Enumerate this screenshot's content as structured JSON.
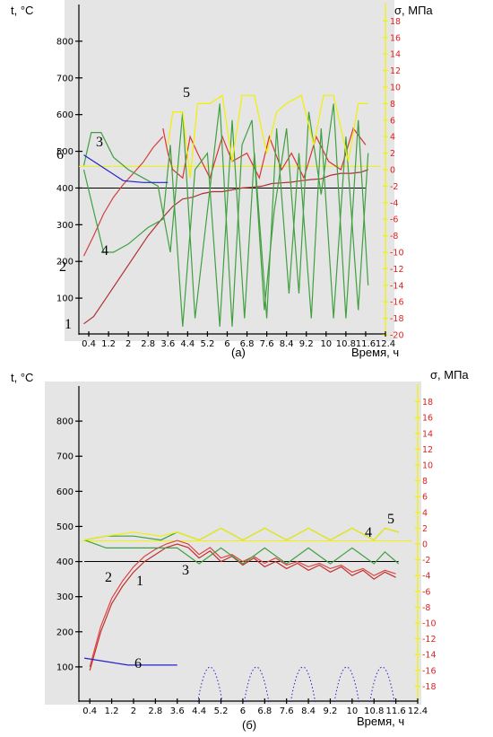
{
  "chart_data": [
    {
      "type": "line",
      "caption": "(а)",
      "left_unit": "t, °C",
      "right_unit": "σ, МПа",
      "xlabel": "Время, ч",
      "x_ticks": [
        "0.4",
        "1.2",
        "2",
        "2.8",
        "3.6",
        "4.4",
        "5.2",
        "6",
        "6.8",
        "7.6",
        "8.4",
        "9.2",
        "10",
        "10.8",
        "11.6",
        "12.4"
      ],
      "y_ticks": [
        "100",
        "200",
        "300",
        "400",
        "500",
        "600",
        "700",
        "800"
      ],
      "y2_ticks": [
        "-20",
        "-18",
        "-16",
        "-14",
        "-12",
        "-10",
        "-8",
        "-6",
        "-4",
        "-2",
        "0",
        "2",
        "4",
        "6",
        "8",
        "10",
        "12",
        "14",
        "16",
        "18"
      ],
      "xlim": [
        0,
        12.4
      ],
      "ylim": [
        0,
        900
      ],
      "y2lim": [
        -20,
        20
      ],
      "reference_lines": [
        {
          "axis": "left",
          "value": 400,
          "color": "#000000",
          "x": [
            0.15,
            11.6
          ]
        },
        {
          "axis": "right",
          "value": 0.4,
          "color": "#f2f200",
          "x": [
            0,
            12.2
          ]
        }
      ],
      "series": [
        {
          "name": "1",
          "color": "#b03030",
          "axis": "left",
          "x": [
            0.2,
            0.6,
            1.0,
            1.6,
            2.2,
            2.8,
            3.4,
            3.8,
            4.2,
            4.6,
            5.0,
            5.4,
            5.8,
            6.2,
            6.6,
            7.0,
            7.4,
            7.8,
            8.2,
            8.6,
            9.0,
            9.4,
            9.8,
            10.2,
            10.6,
            11.0,
            11.4,
            11.7
          ],
          "y": [
            30,
            50,
            90,
            150,
            210,
            270,
            320,
            350,
            370,
            375,
            385,
            390,
            390,
            395,
            400,
            402,
            405,
            412,
            414,
            416,
            420,
            423,
            425,
            435,
            440,
            440,
            443,
            450
          ]
        },
        {
          "name": "2",
          "color": "#d04040",
          "axis": "left",
          "x": [
            0.2,
            0.6,
            1.0,
            1.4,
            1.8,
            2.2,
            2.6,
            3.0,
            3.4
          ],
          "y": [
            215,
            270,
            330,
            375,
            410,
            440,
            470,
            510,
            540
          ]
        },
        {
          "name": "2",
          "color": "#dd3333",
          "axis": "right",
          "x": [
            3.4,
            3.6,
            3.8,
            4.2,
            4.5,
            4.8,
            5.3,
            5.8,
            6.2,
            6.8,
            7.3,
            7.7,
            8.2,
            8.6,
            9.1,
            9.6,
            10.1,
            10.6,
            11.1,
            11.6
          ],
          "y": [
            5,
            2,
            0,
            -1,
            4,
            2,
            -1,
            4,
            1,
            2,
            -1,
            4,
            0,
            2,
            -1,
            4,
            1,
            0,
            5,
            3
          ]
        },
        {
          "name": "3",
          "color": "#40a040",
          "axis": "right",
          "x": [
            0.2,
            0.5,
            0.9,
            1.4,
            2.0,
            2.6,
            3.2,
            3.7,
            4.2,
            4.7,
            5.2,
            5.7,
            6.2,
            6.6,
            7.0,
            7.5,
            7.9,
            8.4,
            8.9,
            9.3,
            9.8,
            10.3,
            10.8,
            11.3,
            11.7
          ],
          "y": [
            0.5,
            4.5,
            4.5,
            1.5,
            0,
            -1,
            -2,
            -10,
            7,
            -18,
            -5,
            8,
            -19,
            3,
            6,
            -17,
            -5,
            5,
            -15,
            7,
            -3,
            8,
            -18,
            6,
            -14
          ]
        },
        {
          "name": "4",
          "color": "#40a040",
          "axis": "right",
          "x": [
            0.2,
            0.6,
            1.0,
            1.4,
            2.0,
            2.8,
            3.4,
            3.7,
            4.2,
            4.7,
            5.2,
            5.7,
            6.2,
            6.7,
            7.1,
            7.6,
            8.0,
            8.5,
            8.9,
            9.4,
            9.8,
            10.3,
            10.8,
            11.3,
            11.7
          ],
          "y": [
            0,
            -5,
            -10,
            -10,
            -9,
            -7,
            -6,
            3,
            -19,
            0,
            2,
            -19,
            6,
            -18,
            2,
            -18,
            5,
            -15,
            2,
            -18,
            5,
            -18,
            4,
            -17,
            2
          ]
        },
        {
          "name": "5",
          "color": "#f0f000",
          "axis": "right",
          "x": [
            3.6,
            3.8,
            4.2,
            4.5,
            4.8,
            5.3,
            5.8,
            6.2,
            6.6,
            7.1,
            7.6,
            8.0,
            8.4,
            9.0,
            9.5,
            9.9,
            10.3,
            10.9,
            11.3,
            11.7
          ],
          "y": [
            3,
            7,
            7,
            -1,
            8,
            8,
            9,
            1,
            9,
            9,
            2,
            7,
            8,
            9,
            3,
            9,
            9,
            1,
            8,
            8
          ]
        },
        {
          "name": "6",
          "color": "#2222cc",
          "axis": "left",
          "x": [
            0.2,
            1.0,
            1.8,
            2.6,
            3.6
          ],
          "y": [
            490,
            455,
            420,
            415,
            415
          ]
        }
      ]
    },
    {
      "type": "line",
      "caption": "(б)",
      "left_unit": "t, °C",
      "right_unit": "σ, МПа",
      "xlabel": "Время, ч",
      "x_ticks": [
        "0.4",
        "1.2",
        "2",
        "2.8",
        "3.6",
        "4.4",
        "5.2",
        "6",
        "6.8",
        "7.6",
        "8.4",
        "9.2",
        "10",
        "10.8",
        "11.6",
        "12.4"
      ],
      "y_ticks": [
        "100",
        "200",
        "300",
        "400",
        "500",
        "600",
        "700",
        "800"
      ],
      "y2_ticks": [
        "-18",
        "-16",
        "-14",
        "-12",
        "-10",
        "-8",
        "-6",
        "-4",
        "-2",
        "0",
        "2",
        "4",
        "6",
        "8",
        "10",
        "12",
        "14",
        "16",
        "18"
      ],
      "xlim": [
        0,
        12.4
      ],
      "ylim": [
        0,
        900
      ],
      "y2lim": [
        -20,
        20
      ],
      "reference_lines": [
        {
          "axis": "left",
          "value": 400,
          "color": "#000000",
          "x": [
            0.2,
            11.7
          ]
        },
        {
          "axis": "right",
          "value": 0.4,
          "color": "#f2f200",
          "x": [
            0.1,
            12.2
          ]
        }
      ],
      "series": [
        {
          "name": "1",
          "color": "#c03030",
          "axis": "left",
          "x": [
            0.4,
            0.8,
            1.2,
            1.6,
            2.0,
            2.4,
            2.8,
            3.2,
            3.6,
            4.0,
            4.4,
            4.8,
            5.2,
            5.6,
            6.0,
            6.4,
            6.8,
            7.2,
            7.6,
            8.0,
            8.4,
            8.8,
            9.2,
            9.6,
            10.0,
            10.4,
            10.8,
            11.2,
            11.6
          ],
          "y": [
            90,
            200,
            280,
            330,
            370,
            400,
            420,
            440,
            450,
            440,
            410,
            430,
            400,
            415,
            390,
            410,
            385,
            400,
            380,
            395,
            375,
            390,
            370,
            385,
            360,
            375,
            350,
            370,
            355
          ]
        },
        {
          "name": "2",
          "color": "#dd4444",
          "axis": "left",
          "x": [
            0.4,
            0.8,
            1.2,
            1.6,
            2.0,
            2.4,
            2.8,
            3.2,
            3.6,
            4.0,
            4.4,
            4.8,
            5.2,
            5.6,
            6.0,
            6.4,
            6.8,
            7.2,
            7.6,
            8.0,
            8.4,
            8.8,
            9.2,
            9.6,
            10.0,
            10.4,
            10.8,
            11.2,
            11.6
          ],
          "y": [
            100,
            215,
            295,
            345,
            385,
            415,
            435,
            450,
            460,
            450,
            420,
            440,
            410,
            420,
            400,
            415,
            395,
            410,
            390,
            400,
            385,
            395,
            380,
            390,
            370,
            380,
            360,
            375,
            365
          ]
        },
        {
          "name": "3",
          "color": "#40a040",
          "axis": "right",
          "x": [
            0.2,
            1.0,
            2.0,
            3.0,
            3.6,
            4.4,
            5.2,
            6.0,
            6.8,
            7.6,
            8.4,
            9.2,
            10.0,
            10.8,
            11.2,
            11.7
          ],
          "y": [
            0.5,
            -0.5,
            -0.5,
            -0.5,
            -0.5,
            -2.5,
            -0.5,
            -2.5,
            -0.5,
            -2.5,
            -0.5,
            -2.5,
            -0.5,
            -2.5,
            -1,
            -2.5
          ]
        },
        {
          "name": "4",
          "color": "#40a040",
          "axis": "right",
          "x": [
            0.2,
            1.0,
            2.0,
            3.0,
            3.6,
            4.4,
            5.2,
            6.0,
            6.8,
            7.6,
            8.4,
            9.2,
            10.0,
            10.8,
            11.2,
            11.7
          ],
          "y": [
            0.5,
            1,
            1,
            0.5,
            1.5,
            0.5,
            2,
            0.5,
            2,
            0.5,
            2,
            0.5,
            2,
            0.5,
            2,
            1.5
          ]
        },
        {
          "name": "5",
          "color": "#f0f000",
          "axis": "right",
          "x": [
            0.2,
            1.0,
            2.0,
            3.0,
            3.6,
            4.4,
            5.2,
            6.0,
            6.8,
            7.6,
            8.4,
            9.2,
            10.0,
            10.8,
            11.2,
            11.7
          ],
          "y": [
            0.5,
            1,
            1.5,
            1,
            1.5,
            0.5,
            2,
            0.5,
            2,
            0.5,
            2,
            0.5,
            2,
            0.5,
            2,
            1.5
          ]
        },
        {
          "name": "6",
          "color": "#2222cc",
          "axis": "left",
          "x": [
            0.2,
            1.0,
            1.8,
            2.6,
            3.6
          ],
          "y": [
            125,
            115,
            105,
            105,
            105
          ]
        }
      ],
      "dotted_arches": {
        "color": "#2222cc",
        "axis": "left",
        "centers": [
          4.8,
          6.5,
          8.2,
          9.8,
          11.1
        ],
        "peak": 100,
        "half_width": 0.45
      }
    }
  ]
}
